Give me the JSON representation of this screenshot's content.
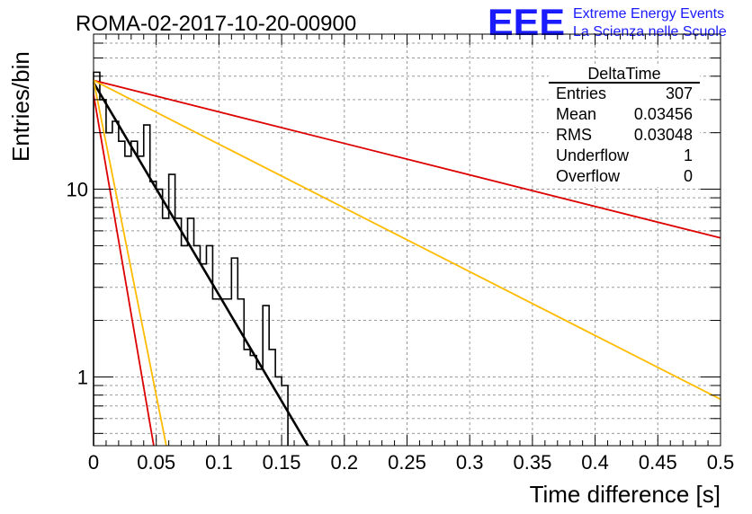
{
  "run_title": "ROMA-02-2017-10-20-00900",
  "logo": {
    "text": "EEE",
    "line1": "Extreme Energy Events",
    "line2": "La Scienza nelle Scuole",
    "color": "#1a1aff"
  },
  "stats": {
    "title": "DeltaTime",
    "rows": [
      {
        "label": "Entries",
        "value": "307"
      },
      {
        "label": "Mean",
        "value": "0.03456"
      },
      {
        "label": "RMS",
        "value": "0.03048"
      },
      {
        "label": "Underflow",
        "value": "1"
      },
      {
        "label": "Overflow",
        "value": "0"
      }
    ]
  },
  "chart_data": {
    "type": "line",
    "title": "",
    "xlabel": "Time difference [s]",
    "ylabel": "Entries/bin",
    "xlim": [
      0,
      0.5
    ],
    "ylim": [
      0.43,
      67
    ],
    "yscale": "log",
    "grid": true,
    "x_ticks": [
      0,
      0.05,
      0.1,
      0.15,
      0.2,
      0.25,
      0.3,
      0.35,
      0.4,
      0.45,
      0.5
    ],
    "x_tick_labels": [
      "0",
      "0.05",
      "0.1",
      "0.15",
      "0.2",
      "0.25",
      "0.3",
      "0.35",
      "0.4",
      "0.45",
      "0.5"
    ],
    "y_ticks": [
      1,
      10
    ],
    "y_tick_labels": [
      "1",
      "10"
    ],
    "histogram": {
      "color": "#000000",
      "bin_width": 0.005,
      "edges": [
        0,
        0.005,
        0.01,
        0.015,
        0.02,
        0.025,
        0.03,
        0.035,
        0.04,
        0.045,
        0.05,
        0.055,
        0.06,
        0.065,
        0.07,
        0.075,
        0.08,
        0.085,
        0.09,
        0.095,
        0.1,
        0.105,
        0.11,
        0.115,
        0.12,
        0.125,
        0.13,
        0.135,
        0.14,
        0.145,
        0.15
      ],
      "counts": [
        42,
        30,
        20,
        23,
        18,
        15,
        18,
        15,
        22,
        11,
        10,
        7,
        12,
        7,
        5,
        7,
        5,
        4,
        5,
        2.6,
        2.6,
        2.6,
        4.3,
        2.6,
        1.4,
        1.3,
        1.1,
        2.4,
        1.4,
        1,
        0.9
      ]
    },
    "series": [
      {
        "color": "#000000",
        "x": [
          0,
          0.171
        ],
        "y": [
          37,
          0.43
        ]
      },
      {
        "color": "#dd0000",
        "x": [
          0,
          0.5
        ],
        "y": [
          38,
          5.5
        ]
      },
      {
        "color": "#ffbb00",
        "x": [
          0,
          0.5
        ],
        "y": [
          38,
          0.76
        ]
      },
      {
        "color": "#dd0000",
        "x": [
          0,
          0.048
        ],
        "y": [
          32,
          0.43
        ]
      },
      {
        "color": "#ffbb00",
        "x": [
          0,
          0.058
        ],
        "y": [
          38,
          0.43
        ]
      }
    ]
  }
}
